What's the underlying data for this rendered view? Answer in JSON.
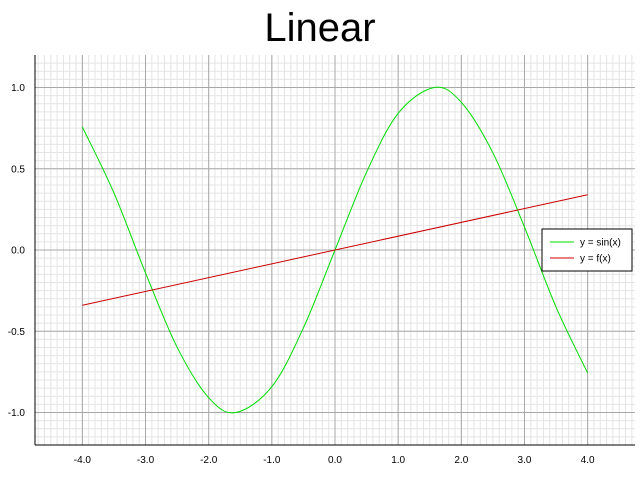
{
  "chart_data": {
    "type": "line",
    "title": "Linear",
    "xlabel": "",
    "ylabel": "",
    "xlim": [
      -4.75,
      4.75
    ],
    "ylim": [
      -1.2,
      1.2
    ],
    "x_ticks": [
      -4.0,
      -3.0,
      -2.0,
      -1.0,
      0.0,
      1.0,
      2.0,
      3.0,
      4.0
    ],
    "x_tick_labels": [
      "-4.0",
      "-3.0",
      "-2.0",
      "-1.0",
      "0.0",
      "1.0",
      "2.0",
      "3.0",
      "4.0"
    ],
    "y_ticks": [
      -1.0,
      -0.5,
      0.0,
      0.5,
      1.0
    ],
    "y_tick_labels": [
      "-1.0",
      "-0.5",
      "0.0",
      "0.5",
      "1.0"
    ],
    "grid": true,
    "minor_grid": true,
    "legend_position": "right",
    "series": [
      {
        "name": "y = sin(x)",
        "color": "#00dd00",
        "x": [
          -4.0,
          -3.5,
          -3.0,
          -2.5,
          -2.0,
          -1.5708,
          -1.0,
          -0.5,
          0.0,
          0.5,
          1.0,
          1.5708,
          2.0,
          2.5,
          3.0,
          3.5,
          4.0
        ],
        "y": [
          0.757,
          0.351,
          -0.141,
          -0.598,
          -0.909,
          -1.0,
          -0.841,
          -0.479,
          0.0,
          0.479,
          0.841,
          1.0,
          0.909,
          0.598,
          0.141,
          -0.351,
          -0.757
        ]
      },
      {
        "name": "y = f(x)",
        "color": "#cc0000",
        "x": [
          -4.0,
          4.0
        ],
        "y": [
          -0.34,
          0.34
        ]
      }
    ]
  }
}
